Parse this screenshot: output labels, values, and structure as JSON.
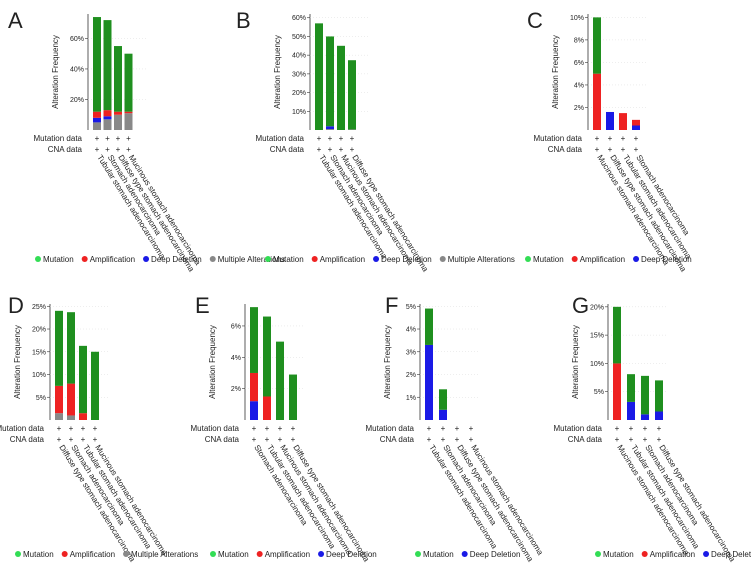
{
  "chart_data": [
    {
      "type": "bar",
      "panel": "A",
      "y_label": "Alteration Frequency",
      "categories": [
        "Tubular stomach adenocarcinoma",
        "Stomach adenocarcinoma",
        "Diffuse type stomach adenocarcinoma",
        "Mucinous stomach adenocarcinoma"
      ],
      "series": [
        {
          "name": "Mutation",
          "color": "#1f8f1f",
          "values": [
            62,
            59,
            43,
            38
          ]
        },
        {
          "name": "Amplification",
          "color": "#ee2222",
          "values": [
            4,
            4,
            2,
            1
          ]
        },
        {
          "name": "Deep Deletion",
          "color": "#1a1ae6",
          "values": [
            3,
            2,
            0,
            0
          ]
        },
        {
          "name": "Multiple Alterations",
          "color": "#888888",
          "values": [
            5,
            7,
            10,
            11
          ]
        }
      ],
      "ylim": [
        0,
        76
      ],
      "yticks": [
        {
          "value": 20,
          "label": "20%"
        },
        {
          "value": 40,
          "label": "40%"
        },
        {
          "value": 60,
          "label": "60%"
        }
      ],
      "rows": [
        {
          "label": "Mutation data",
          "marks": [
            "+",
            "+",
            "+",
            "+"
          ]
        },
        {
          "label": "CNA data",
          "marks": [
            "+",
            "+",
            "+",
            "+"
          ]
        }
      ]
    },
    {
      "type": "bar",
      "panel": "B",
      "y_label": "Alteration Frequency",
      "categories": [
        "Tubular stomach adenocarcinoma",
        "Stomach adenocarcinoma",
        "Mucinous stomach adenocarcinoma",
        "Diffuse type stomach adenocarcinoma"
      ],
      "series": [
        {
          "name": "Mutation",
          "color": "#1f8f1f",
          "values": [
            57,
            48,
            45,
            37
          ]
        },
        {
          "name": "Amplification",
          "color": "#ee2222",
          "values": [
            0,
            0,
            0,
            0
          ]
        },
        {
          "name": "Deep Deletion",
          "color": "#1a1ae6",
          "values": [
            0,
            1.5,
            0,
            0
          ]
        },
        {
          "name": "Multiple Alterations",
          "color": "#888888",
          "values": [
            0,
            0.5,
            0,
            0.3
          ]
        }
      ],
      "ylim": [
        0,
        62
      ],
      "yticks": [
        {
          "value": 10,
          "label": "10%"
        },
        {
          "value": 20,
          "label": "20%"
        },
        {
          "value": 30,
          "label": "30%"
        },
        {
          "value": 40,
          "label": "40%"
        },
        {
          "value": 50,
          "label": "50%"
        },
        {
          "value": 60,
          "label": "60%"
        }
      ],
      "rows": [
        {
          "label": "Mutation data",
          "marks": [
            "+",
            "+",
            "+",
            "+"
          ]
        },
        {
          "label": "CNA data",
          "marks": [
            "+",
            "+",
            "+",
            "+"
          ]
        }
      ]
    },
    {
      "type": "bar",
      "panel": "C",
      "y_label": "Alteration Frequency",
      "categories": [
        "Mucinous stomach adenocarcinoma",
        "Diffuse type stomach adenocarcinoma",
        "Tubular stomach adenocarcinoma",
        "Stomach adenocarcinoma"
      ],
      "series": [
        {
          "name": "Mutation",
          "color": "#1f8f1f",
          "values": [
            5,
            0,
            0,
            0
          ]
        },
        {
          "name": "Amplification",
          "color": "#ee2222",
          "values": [
            5,
            0,
            1.5,
            0.5
          ]
        },
        {
          "name": "Deep Deletion",
          "color": "#1a1ae6",
          "values": [
            0,
            1.6,
            0,
            0.4
          ]
        }
      ],
      "ylim": [
        0,
        10.3
      ],
      "yticks": [
        {
          "value": 2,
          "label": "2%"
        },
        {
          "value": 4,
          "label": "4%"
        },
        {
          "value": 6,
          "label": "6%"
        },
        {
          "value": 8,
          "label": "8%"
        },
        {
          "value": 10,
          "label": "10%"
        }
      ],
      "rows": [
        {
          "label": "Mutation data",
          "marks": [
            "+",
            "+",
            "+",
            "+"
          ]
        },
        {
          "label": "CNA data",
          "marks": [
            "+",
            "+",
            "+",
            "+"
          ]
        }
      ]
    },
    {
      "type": "bar",
      "panel": "D",
      "y_label": "Alteration Frequency",
      "categories": [
        "Diffuse type stomach adenocarcinoma",
        "Stomach adenocarcinoma",
        "Tubular stomach adenocarcinoma",
        "Mucinous stomach adenocarcinoma"
      ],
      "series": [
        {
          "name": "Mutation",
          "color": "#1f8f1f",
          "values": [
            16.5,
            15.7,
            14.8,
            15
          ]
        },
        {
          "name": "Amplification",
          "color": "#ee2222",
          "values": [
            6,
            7,
            1.5,
            0
          ]
        },
        {
          "name": "Multiple Alterations",
          "color": "#888888",
          "values": [
            1.5,
            1,
            0,
            0
          ]
        }
      ],
      "ylim": [
        0,
        25.5
      ],
      "yticks": [
        {
          "value": 5,
          "label": "5%"
        },
        {
          "value": 10,
          "label": "10%"
        },
        {
          "value": 15,
          "label": "15%"
        },
        {
          "value": 20,
          "label": "20%"
        },
        {
          "value": 25,
          "label": "25%"
        }
      ],
      "rows": [
        {
          "label": "Mutation data",
          "marks": [
            "+",
            "+",
            "+",
            "+"
          ]
        },
        {
          "label": "CNA data",
          "marks": [
            "+",
            "+",
            "+",
            "+"
          ]
        }
      ]
    },
    {
      "type": "bar",
      "panel": "E",
      "y_label": "Alteration Frequency",
      "categories": [
        "Stomach adenocarcinoma",
        "Tubular stomach adenocarcinoma",
        "Mucinous stomach adenocarcinoma",
        "Diffuse type stomach adenocarcinoma"
      ],
      "series": [
        {
          "name": "Mutation",
          "color": "#1f8f1f",
          "values": [
            4.2,
            5.1,
            5,
            2.9
          ]
        },
        {
          "name": "Amplification",
          "color": "#ee2222",
          "values": [
            1.8,
            1.5,
            0,
            0
          ]
        },
        {
          "name": "Deep Deletion",
          "color": "#1a1ae6",
          "values": [
            1.2,
            0,
            0,
            0
          ]
        }
      ],
      "ylim": [
        0,
        7.4
      ],
      "yticks": [
        {
          "value": 2,
          "label": "2%"
        },
        {
          "value": 4,
          "label": "4%"
        },
        {
          "value": 6,
          "label": "6%"
        }
      ],
      "rows": [
        {
          "label": "Mutation data",
          "marks": [
            "+",
            "+",
            "+",
            "+"
          ]
        },
        {
          "label": "CNA data",
          "marks": [
            "+",
            "+",
            "+",
            "+"
          ]
        }
      ]
    },
    {
      "type": "bar",
      "panel": "F",
      "y_label": "Alteration Frequency",
      "categories": [
        "Tubular stomach adenocarcinoma",
        "Stomach adenocarcinoma",
        "Diffuse type stomach adenocarcinoma",
        "Mucinous stomach adenocarcinoma"
      ],
      "series": [
        {
          "name": "Mutation",
          "color": "#1f8f1f",
          "values": [
            1.6,
            0.9,
            0,
            0
          ]
        },
        {
          "name": "Deep Deletion",
          "color": "#1a1ae6",
          "values": [
            3.3,
            0.45,
            0,
            0
          ]
        }
      ],
      "ylim": [
        0,
        5.1
      ],
      "yticks": [
        {
          "value": 1,
          "label": "1%"
        },
        {
          "value": 2,
          "label": "2%"
        },
        {
          "value": 3,
          "label": "3%"
        },
        {
          "value": 4,
          "label": "4%"
        },
        {
          "value": 5,
          "label": "5%"
        }
      ],
      "rows": [
        {
          "label": "Mutation data",
          "marks": [
            "+",
            "+",
            "+",
            "+"
          ]
        },
        {
          "label": "CNA data",
          "marks": [
            "+",
            "+",
            "+",
            "+"
          ]
        }
      ]
    },
    {
      "type": "bar",
      "panel": "G",
      "y_label": "Alteration Frequency",
      "categories": [
        "Mucinous stomach adenocarcinoma",
        "Tubular stomach adenocarcinoma",
        "Stomach adenocarcinoma",
        "Diffuse type stomach adenocarcinoma"
      ],
      "series": [
        {
          "name": "Mutation",
          "color": "#1f8f1f",
          "values": [
            10,
            4.9,
            6.8,
            5.5
          ]
        },
        {
          "name": "Amplification",
          "color": "#ee2222",
          "values": [
            10,
            0,
            0,
            0
          ]
        },
        {
          "name": "Deep Deletion",
          "color": "#1a1ae6",
          "values": [
            0,
            3.2,
            1,
            1.5
          ]
        }
      ],
      "ylim": [
        0,
        20.5
      ],
      "yticks": [
        {
          "value": 5,
          "label": "5%"
        },
        {
          "value": 10,
          "label": "10%"
        },
        {
          "value": 15,
          "label": "15%"
        },
        {
          "value": 20,
          "label": "20%"
        }
      ],
      "rows": [
        {
          "label": "Mutation data",
          "marks": [
            "+",
            "+",
            "+",
            "+"
          ]
        },
        {
          "label": "CNA data",
          "marks": [
            "+",
            "+",
            "+",
            "+"
          ]
        }
      ]
    }
  ]
}
